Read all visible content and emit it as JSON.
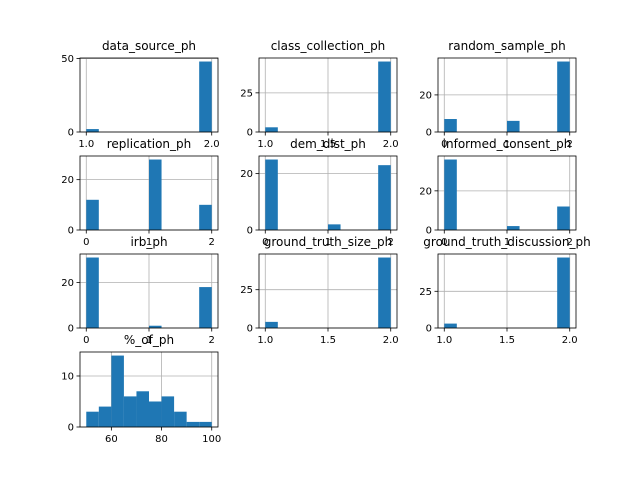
{
  "chart_data": [
    {
      "type": "histogram",
      "title": "data_source_ph",
      "xlim": [
        0.95,
        2.05
      ],
      "ylim": [
        0,
        50.4
      ],
      "xticks": [
        1.0,
        2.0
      ],
      "xtick_labels": [
        "1.0",
        "2.0"
      ],
      "yticks": [
        0,
        50
      ],
      "ytick_labels": [
        "0",
        "50"
      ],
      "bins": [
        [
          1.0,
          1.1,
          2
        ],
        [
          1.9,
          2.0,
          48
        ]
      ]
    },
    {
      "type": "histogram",
      "title": "class_collection_ph",
      "xlim": [
        0.95,
        2.05
      ],
      "ylim": [
        0,
        47.25
      ],
      "xticks": [
        1.0,
        1.5,
        2.0
      ],
      "xtick_labels": [
        "1.0",
        "1.5",
        "2.0"
      ],
      "yticks": [
        0,
        25
      ],
      "ytick_labels": [
        "0",
        "25"
      ],
      "bins": [
        [
          1.0,
          1.1,
          3
        ],
        [
          1.9,
          2.0,
          45
        ]
      ]
    },
    {
      "type": "histogram",
      "title": "random_sample_ph",
      "xlim": [
        -0.1,
        2.1
      ],
      "ylim": [
        0,
        39.9
      ],
      "xticks": [
        0,
        1,
        2
      ],
      "xtick_labels": [
        "0",
        "1",
        "2"
      ],
      "yticks": [
        0,
        20
      ],
      "ytick_labels": [
        "0",
        "20"
      ],
      "bins": [
        [
          0.0,
          0.2,
          7
        ],
        [
          1.0,
          1.2,
          6
        ],
        [
          1.8,
          2.0,
          38
        ]
      ]
    },
    {
      "type": "histogram",
      "title": "replication_ph",
      "xlim": [
        -0.1,
        2.1
      ],
      "ylim": [
        0,
        29.4
      ],
      "xticks": [
        0,
        1,
        2
      ],
      "xtick_labels": [
        "0",
        "1",
        "2"
      ],
      "yticks": [
        0,
        20
      ],
      "ytick_labels": [
        "0",
        "20"
      ],
      "bins": [
        [
          0.0,
          0.2,
          12
        ],
        [
          1.0,
          1.2,
          28
        ],
        [
          1.8,
          2.0,
          10
        ]
      ]
    },
    {
      "type": "histogram",
      "title": "dem_dist_ph",
      "xlim": [
        -0.1,
        2.1
      ],
      "ylim": [
        0,
        26.25
      ],
      "xticks": [
        0,
        1,
        2
      ],
      "xtick_labels": [
        "0",
        "1",
        "2"
      ],
      "yticks": [
        0,
        20
      ],
      "ytick_labels": [
        "0",
        "20"
      ],
      "bins": [
        [
          0.0,
          0.2,
          25
        ],
        [
          1.0,
          1.2,
          2
        ],
        [
          1.8,
          2.0,
          23
        ]
      ]
    },
    {
      "type": "histogram",
      "title": "informed_consent_ph",
      "xlim": [
        -0.1,
        2.1
      ],
      "ylim": [
        0,
        37.8
      ],
      "xticks": [
        0,
        1,
        2
      ],
      "xtick_labels": [
        "0",
        "1",
        "2"
      ],
      "yticks": [
        0,
        20
      ],
      "ytick_labels": [
        "0",
        "20"
      ],
      "bins": [
        [
          0.0,
          0.2,
          36
        ],
        [
          1.0,
          1.2,
          2
        ],
        [
          1.8,
          2.0,
          12
        ]
      ]
    },
    {
      "type": "histogram",
      "title": "irb_ph",
      "xlim": [
        -0.1,
        2.1
      ],
      "ylim": [
        0,
        32.55
      ],
      "xticks": [
        0,
        1,
        2
      ],
      "xtick_labels": [
        "0",
        "1",
        "2"
      ],
      "yticks": [
        0,
        20
      ],
      "ytick_labels": [
        "0",
        "20"
      ],
      "bins": [
        [
          0.0,
          0.2,
          31
        ],
        [
          1.0,
          1.2,
          1
        ],
        [
          1.8,
          2.0,
          18
        ]
      ]
    },
    {
      "type": "histogram",
      "title": "ground_truth_size_ph",
      "xlim": [
        0.95,
        2.05
      ],
      "ylim": [
        0,
        48.3
      ],
      "xticks": [
        1.0,
        1.5,
        2.0
      ],
      "xtick_labels": [
        "1.0",
        "1.5",
        "2.0"
      ],
      "yticks": [
        0,
        25
      ],
      "ytick_labels": [
        "0",
        "25"
      ],
      "bins": [
        [
          1.0,
          1.1,
          4
        ],
        [
          1.9,
          2.0,
          46
        ]
      ]
    },
    {
      "type": "histogram",
      "title": "ground_truth_discussion_ph",
      "xlim": [
        0.95,
        2.05
      ],
      "ylim": [
        0,
        50.4
      ],
      "xticks": [
        1.0,
        1.5,
        2.0
      ],
      "xtick_labels": [
        "1.0",
        "1.5",
        "2.0"
      ],
      "yticks": [
        0,
        25
      ],
      "ytick_labels": [
        "0",
        "25"
      ],
      "bins": [
        [
          1.0,
          1.1,
          3
        ],
        [
          1.9,
          2.0,
          48
        ]
      ]
    },
    {
      "type": "histogram",
      "title": "%_of_ph",
      "xlim": [
        47.5,
        102.5
      ],
      "ylim": [
        0,
        14.7
      ],
      "xticks": [
        60,
        80,
        100
      ],
      "xtick_labels": [
        "60",
        "80",
        "100"
      ],
      "yticks": [
        0,
        10
      ],
      "ytick_labels": [
        "0",
        "10"
      ],
      "bins": [
        [
          50,
          55,
          3
        ],
        [
          55,
          60,
          4
        ],
        [
          60,
          65,
          14
        ],
        [
          65,
          70,
          6
        ],
        [
          70,
          75,
          7
        ],
        [
          75,
          80,
          5
        ],
        [
          80,
          85,
          6
        ],
        [
          85,
          90,
          3
        ],
        [
          90,
          95,
          1
        ],
        [
          95,
          100,
          1
        ]
      ]
    }
  ]
}
